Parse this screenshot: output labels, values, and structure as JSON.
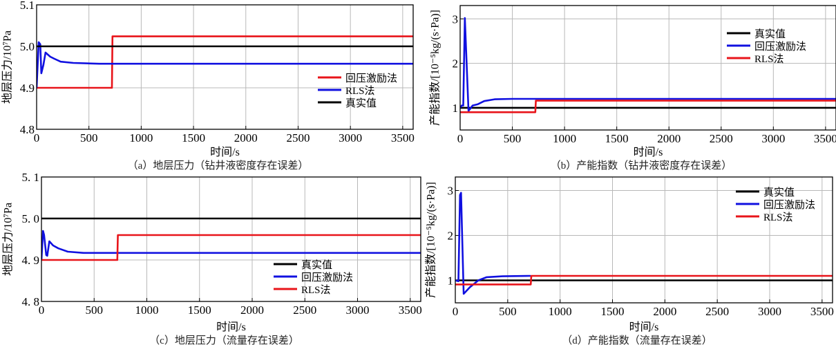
{
  "chart_data": [
    {
      "type": "line",
      "caption": "（a）地层压力（钻井液密度存在误差）",
      "xlabel": "时间/s",
      "ylabel": "地层压力/10⁷Pa",
      "xlim": [
        0,
        3600
      ],
      "ylim": [
        4.8,
        5.1
      ],
      "xticks": [
        0,
        500,
        1000,
        1500,
        2000,
        2500,
        3000,
        3500
      ],
      "yticks": [
        4.8,
        4.9,
        5.0,
        5.1
      ],
      "ytick_labels": [
        "4.8",
        "4.9",
        "5.0",
        "5.1"
      ],
      "grid": true,
      "legend_placement": "right",
      "series": [
        {
          "name": "回压激励法",
          "color": "#e8141a",
          "x": [
            0,
            720,
            725,
            3600
          ],
          "y": [
            4.9,
            4.9,
            5.024,
            5.024
          ]
        },
        {
          "name": "RLS法",
          "color": "#1010e0",
          "x": [
            0,
            20,
            35,
            45,
            65,
            85,
            130,
            170,
            230,
            350,
            600,
            3600
          ],
          "y": [
            4.9,
            5.01,
            5.005,
            4.935,
            4.955,
            4.985,
            4.975,
            4.97,
            4.963,
            4.96,
            4.958,
            4.958
          ]
        },
        {
          "name": "真实值",
          "color": "#000000",
          "x": [
            0,
            3600
          ],
          "y": [
            5.0,
            5.0
          ]
        }
      ]
    },
    {
      "type": "line",
      "caption": "（b）产能指数（钻井液密度存在误差）",
      "xlabel": "时间/s",
      "ylabel": "产能指数/[10⁻⁵kg/(s·Pa)]",
      "xlim": [
        0,
        3600
      ],
      "ylim": [
        0.5,
        3.3
      ],
      "xticks": [
        0,
        500,
        1000,
        1500,
        2000,
        2500,
        3000,
        3500
      ],
      "yticks": [
        1,
        2,
        3
      ],
      "ytick_labels": [
        "1",
        "2",
        "3"
      ],
      "grid": true,
      "legend_placement": "top-right",
      "series": [
        {
          "name": "真实值",
          "color": "#000000",
          "x": [
            0,
            3600
          ],
          "y": [
            1.0,
            1.0
          ]
        },
        {
          "name": "回压激励法",
          "color": "#1010e0",
          "x": [
            0,
            15,
            30,
            45,
            80,
            120,
            170,
            230,
            330,
            500,
            3600
          ],
          "y": [
            1.0,
            1.05,
            1.05,
            3.02,
            0.93,
            1.05,
            1.08,
            1.15,
            1.19,
            1.2,
            1.2
          ]
        },
        {
          "name": "RLS法",
          "color": "#e8141a",
          "x": [
            0,
            720,
            725,
            3600
          ],
          "y": [
            0.9,
            0.9,
            1.16,
            1.16
          ]
        }
      ]
    },
    {
      "type": "line",
      "caption": "（c）地层压力（流量存在误差）",
      "xlabel": "时间/s",
      "ylabel": "地层压力/10⁷Pa",
      "xlim": [
        0,
        3600
      ],
      "ylim": [
        4.8,
        5.1
      ],
      "xticks": [
        0,
        500,
        1000,
        1500,
        2000,
        2500,
        3000,
        3500
      ],
      "yticks": [
        4.8,
        4.9,
        5.0,
        5.1
      ],
      "ytick_labels": [
        "4. 8",
        "4. 9",
        "5. 0",
        "5. 1"
      ],
      "grid": true,
      "legend_placement": "bottom-center",
      "series": [
        {
          "name": "真实值",
          "color": "#000000",
          "x": [
            0,
            3600
          ],
          "y": [
            5.0,
            5.0
          ]
        },
        {
          "name": "回压激励法",
          "color": "#1010e0",
          "x": [
            0,
            15,
            25,
            45,
            55,
            75,
            110,
            160,
            250,
            400,
            3600
          ],
          "y": [
            4.9,
            4.97,
            4.96,
            4.912,
            4.91,
            4.945,
            4.935,
            4.928,
            4.92,
            4.917,
            4.917
          ]
        },
        {
          "name": "RLS法",
          "color": "#e8141a",
          "x": [
            0,
            720,
            725,
            3600
          ],
          "y": [
            4.9,
            4.9,
            4.96,
            4.96
          ]
        }
      ]
    },
    {
      "type": "line",
      "caption": "（d）产能指数（流量存在误差）",
      "xlabel": "时间/s",
      "ylabel": "产能指数/[10⁻⁵kg/(s·Pa)]",
      "xlim": [
        0,
        3600
      ],
      "ylim": [
        0.5,
        3.3
      ],
      "xticks": [
        0,
        500,
        1000,
        1500,
        2000,
        2500,
        3000,
        3500
      ],
      "yticks": [
        1,
        2,
        3
      ],
      "ytick_labels": [
        "1",
        "2",
        "3"
      ],
      "grid": true,
      "legend_placement": "top-right",
      "series": [
        {
          "name": "真实值",
          "color": "#000000",
          "x": [
            0,
            3600
          ],
          "y": [
            1.0,
            1.0
          ]
        },
        {
          "name": "回压激励法",
          "color": "#1010e0",
          "x": [
            0,
            30,
            45,
            55,
            80,
            140,
            220,
            300,
            450,
            720
          ],
          "y": [
            1.0,
            0.98,
            2.9,
            2.95,
            0.7,
            0.85,
            1.0,
            1.07,
            1.09,
            1.1
          ]
        },
        {
          "name": "RLS法",
          "color": "#e8141a",
          "x": [
            0,
            720,
            725,
            3600
          ],
          "y": [
            0.91,
            0.91,
            1.1,
            1.1
          ]
        }
      ]
    }
  ]
}
